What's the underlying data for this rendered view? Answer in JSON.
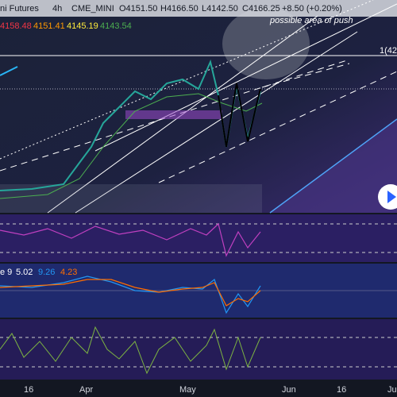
{
  "header": {
    "symbol": "ni Futures",
    "interval": "4h",
    "exchange": "CME_MINI",
    "open": "O4151.50",
    "high": "H4166.50",
    "low": "L4142.50",
    "close": "C4166.25",
    "change": "+8.50 (+0.20%)"
  },
  "moving_averages": [
    "4158.48",
    "4151.41",
    "4145.19",
    "4143.54"
  ],
  "annotation": "possible area of push",
  "price_label": "1(42",
  "macd": {
    "label": "e 9",
    "values": [
      "5.02",
      "9.26",
      "4.23"
    ]
  },
  "time_axis": [
    "16",
    "Apr",
    "May",
    "Jun",
    "16",
    "Ju"
  ]
}
